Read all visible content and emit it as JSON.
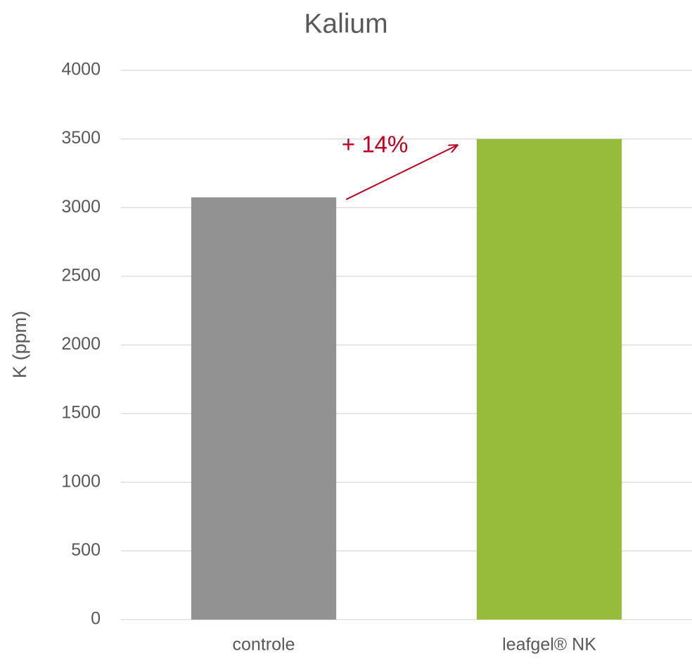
{
  "chart_data": {
    "type": "bar",
    "title": "Kalium",
    "ylabel": "K (ppm)",
    "categories": [
      "controle",
      "leafgel® NK"
    ],
    "values": [
      3075,
      3500
    ],
    "colors": [
      "#929292",
      "#97bb3b"
    ],
    "ylim": [
      0,
      4000
    ],
    "yticks": [
      0,
      500,
      1000,
      1500,
      2000,
      2500,
      3000,
      3500,
      4000
    ],
    "grid": true,
    "annotation": "+ 14%",
    "annotation_color": "#c00020"
  }
}
